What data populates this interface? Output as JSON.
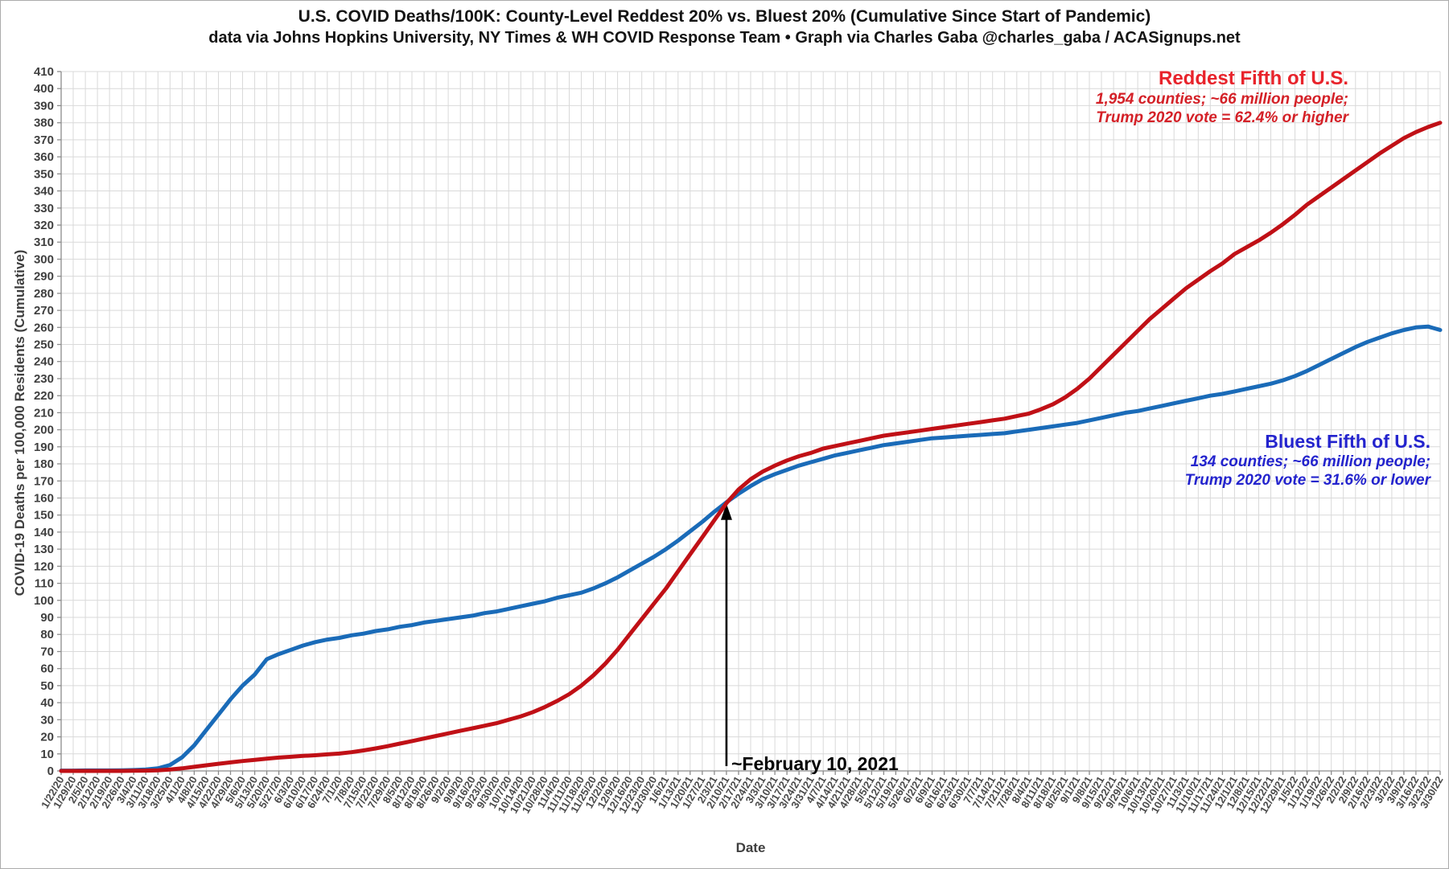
{
  "title": {
    "line1": "U.S. COVID Deaths/100K: County-Level Reddest 20% vs. Bluest 20% (Cumulative Since Start of Pandemic)",
    "line2": "data via Johns Hopkins University, NY Times & WH COVID Response Team • Graph via Charles Gaba @charles_gaba / ACASignups.net"
  },
  "legends": {
    "red": {
      "heading": "Reddest Fifth of U.S.",
      "line2": "1,954 counties; ~66 million people;",
      "line3": "Trump 2020 vote = 62.4% or higher"
    },
    "blue": {
      "heading": "Bluest Fifth of U.S.",
      "line2": "134 counties; ~66 million people;",
      "line3": "Trump 2020 vote = 31.6% or lower"
    }
  },
  "axes": {
    "y_title": "COVID-19 Deaths per 100,000 Residents (Cumulative)",
    "x_title": "Date"
  },
  "colors": {
    "red_line": "#c01016",
    "blue_line": "#1a6bb8",
    "red_heading": "#e8232b",
    "red_sub": "#d42027",
    "blue_text": "#2323cd",
    "grid": "#d9d9d9",
    "axis": "#8c8c8c",
    "tick_label": "#3f3f3f",
    "annotation": "#000000"
  },
  "chart_data": {
    "type": "line",
    "title": "U.S. COVID Deaths/100K: County-Level Reddest 20% vs. Bluest 20% (Cumulative Since Start of Pandemic)",
    "xlabel": "Date",
    "ylabel": "COVID-19 Deaths per 100,000 Residents (Cumulative)",
    "ylim": [
      0,
      410
    ],
    "y_step": 10,
    "grid": true,
    "legend_position": "inline-labels",
    "annotation": {
      "text": "~February 10, 2021",
      "date": "2/10/21",
      "index": 55,
      "tip_value": 150
    },
    "x": [
      "1/22/20",
      "1/29/20",
      "2/5/20",
      "2/12/20",
      "2/19/20",
      "2/26/20",
      "3/4/20",
      "3/11/20",
      "3/18/20",
      "3/25/20",
      "4/1/20",
      "4/8/20",
      "4/15/20",
      "4/22/20",
      "4/29/20",
      "5/6/20",
      "5/13/20",
      "5/20/20",
      "5/27/20",
      "6/3/20",
      "6/10/20",
      "6/17/20",
      "6/24/20",
      "7/1/20",
      "7/8/20",
      "7/15/20",
      "7/22/20",
      "7/29/20",
      "8/5/20",
      "8/12/20",
      "8/19/20",
      "8/26/20",
      "9/2/20",
      "9/9/20",
      "9/16/20",
      "9/23/20",
      "9/30/20",
      "10/7/20",
      "10/14/20",
      "10/21/20",
      "10/28/20",
      "11/4/20",
      "11/11/20",
      "11/18/20",
      "11/25/20",
      "12/2/20",
      "12/9/20",
      "12/16/20",
      "12/23/20",
      "12/30/20",
      "1/6/21",
      "1/13/21",
      "1/20/21",
      "1/27/21",
      "2/3/21",
      "2/10/21",
      "2/17/21",
      "2/24/21",
      "3/3/21",
      "3/10/21",
      "3/17/21",
      "3/24/21",
      "3/31/21",
      "4/7/21",
      "4/14/21",
      "4/21/21",
      "4/28/21",
      "5/5/21",
      "5/12/21",
      "5/19/21",
      "5/26/21",
      "6/2/21",
      "6/9/21",
      "6/16/21",
      "6/23/21",
      "6/30/21",
      "7/7/21",
      "7/14/21",
      "7/21/21",
      "7/28/21",
      "8/4/21",
      "8/11/21",
      "8/18/21",
      "8/25/21",
      "9/1/21",
      "9/8/21",
      "9/15/21",
      "9/22/21",
      "9/29/21",
      "10/6/21",
      "10/13/21",
      "10/20/21",
      "10/27/21",
      "11/3/21",
      "11/10/21",
      "11/17/21",
      "11/24/21",
      "12/1/21",
      "12/8/21",
      "12/15/21",
      "12/22/21",
      "12/29/21",
      "1/5/22",
      "1/12/22",
      "1/19/22",
      "1/26/22",
      "2/2/22",
      "2/9/22",
      "2/16/22",
      "2/23/22",
      "3/2/22",
      "3/9/22",
      "3/16/22",
      "3/23/22",
      "3/30/22"
    ],
    "series": [
      {
        "id": "reddest",
        "name": "Reddest Fifth of U.S.",
        "color": "#c01016",
        "values": [
          0,
          0,
          0,
          0,
          0,
          0,
          0.1,
          0.2,
          0.4,
          0.8,
          1.5,
          2.4,
          3.3,
          4.2,
          5,
          5.8,
          6.5,
          7.2,
          7.8,
          8.3,
          8.8,
          9.2,
          9.7,
          10.2,
          11,
          12,
          13.2,
          14.5,
          16,
          17.5,
          19,
          20.5,
          22,
          23.5,
          25,
          26.5,
          28,
          30,
          32,
          34.5,
          37.5,
          41,
          45,
          50,
          56,
          63,
          71,
          80,
          89,
          98,
          107,
          117,
          127,
          137,
          147,
          157,
          165,
          171,
          175.5,
          179,
          182,
          184.5,
          186.5,
          189,
          190.5,
          192,
          193.5,
          195,
          196.5,
          197.5,
          198.5,
          199.5,
          200.5,
          201.5,
          202.5,
          203.5,
          204.5,
          205.5,
          206.5,
          208,
          209.5,
          212,
          215,
          219,
          224,
          230,
          237,
          244,
          251,
          258,
          265,
          271,
          277,
          283,
          288,
          293,
          297.5,
          303,
          307,
          311,
          315.5,
          320.5,
          326,
          332,
          337,
          342,
          347,
          352,
          357,
          362,
          366.5,
          371,
          374.5,
          377.5,
          380
        ]
      },
      {
        "id": "bluest",
        "name": "Bluest Fifth of U.S.",
        "color": "#1a6bb8",
        "values": [
          0.2,
          0.2,
          0.3,
          0.3,
          0.3,
          0.4,
          0.5,
          0.8,
          1.5,
          3.5,
          8,
          15,
          24,
          33,
          42,
          50,
          56.5,
          65.5,
          68.5,
          71,
          73.5,
          75.5,
          77,
          78,
          79.5,
          80.5,
          82,
          83,
          84.5,
          85.5,
          87,
          88,
          89,
          90,
          91,
          92.5,
          93.5,
          95,
          96.5,
          98,
          99.5,
          101.5,
          103,
          104.5,
          107,
          110,
          113.5,
          117.5,
          121.5,
          125.5,
          130,
          135,
          140.5,
          146,
          152,
          157.5,
          162.5,
          167,
          171,
          174,
          176.5,
          179,
          181,
          183,
          185,
          186.5,
          188,
          189.5,
          191,
          192,
          193,
          194,
          195,
          195.5,
          196,
          196.5,
          197,
          197.5,
          198,
          199,
          200,
          201,
          202,
          203,
          204,
          205.5,
          207,
          208.5,
          210,
          211,
          212.5,
          214,
          215.5,
          217,
          218.5,
          220,
          221,
          222.5,
          224,
          225.5,
          227,
          229,
          231.5,
          234.5,
          238,
          241.5,
          245,
          248.5,
          251.5,
          254,
          256.5,
          258.5,
          260,
          260.5,
          258.5
        ]
      }
    ]
  }
}
